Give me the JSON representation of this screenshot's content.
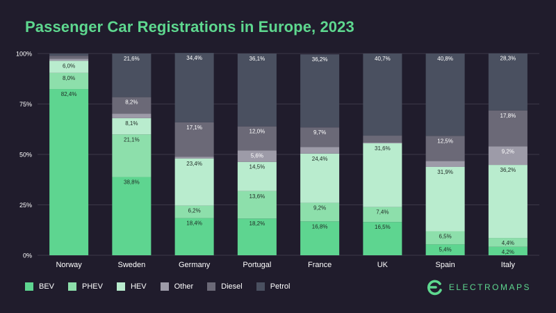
{
  "title": "Passenger Car Registrations in Europe, 2023",
  "brand": {
    "name": "ELECTROMAPS",
    "icon": "electromaps-logo-icon",
    "color": "#5ed88f"
  },
  "chart_data": {
    "type": "bar",
    "stacked": true,
    "title": "Passenger Car Registrations in Europe, 2023",
    "xlabel": "",
    "ylabel": "",
    "ylim": [
      0,
      100
    ],
    "yticks": [
      "0%",
      "25%",
      "50%",
      "75%",
      "100%"
    ],
    "categories": [
      "Norway",
      "Sweden",
      "Germany",
      "Portugal",
      "France",
      "UK",
      "Spain",
      "Italy"
    ],
    "series": [
      {
        "name": "BEV",
        "color": "#5ed590",
        "values": [
          82.4,
          38.8,
          18.4,
          18.2,
          16.8,
          16.5,
          5.4,
          4.2
        ],
        "labels": [
          "82,4%",
          "38,8%",
          "18,4%",
          "18,2%",
          "16,8%",
          "16,5%",
          "5,4%",
          "4,2%"
        ]
      },
      {
        "name": "PHEV",
        "color": "#8ddfab",
        "values": [
          8.0,
          21.1,
          6.2,
          13.6,
          9.2,
          7.4,
          6.5,
          4.4
        ],
        "labels": [
          "8,0%",
          "21,1%",
          "6,2%",
          "13,6%",
          "9,2%",
          "7,4%",
          "6,5%",
          "4,4%"
        ]
      },
      {
        "name": "HEV",
        "color": "#b9ecce",
        "values": [
          6.0,
          8.1,
          23.4,
          14.5,
          24.4,
          31.6,
          31.9,
          36.2
        ],
        "labels": [
          "6,0%",
          "8,1%",
          "23,4%",
          "14,5%",
          "24,4%",
          "31,6%",
          "31,9%",
          "36,2%"
        ]
      },
      {
        "name": "Other",
        "color": "#9d9ba8",
        "values": [
          1.0,
          2.2,
          0.8,
          5.6,
          3.3,
          0.4,
          2.9,
          9.2
        ],
        "labels": [
          "",
          "",
          "",
          "5,6%",
          "",
          "",
          "",
          "9,2%"
        ]
      },
      {
        "name": "Diesel",
        "color": "#6b6977",
        "values": [
          1.5,
          8.2,
          17.1,
          12.0,
          9.7,
          3.4,
          12.5,
          17.8
        ],
        "labels": [
          "",
          "8,2%",
          "17,1%",
          "12,0%",
          "9,7%",
          "",
          "12,5%",
          "17,8%"
        ]
      },
      {
        "name": "Petrol",
        "color": "#4a5060",
        "values": [
          1.1,
          21.6,
          34.4,
          36.1,
          36.2,
          40.7,
          40.8,
          28.3
        ],
        "labels": [
          "",
          "21,6%",
          "34,4%",
          "36,1%",
          "36,2%",
          "40,7%",
          "40,8%",
          "28,3%"
        ]
      }
    ],
    "legend": "bottom-left",
    "grid": true
  }
}
